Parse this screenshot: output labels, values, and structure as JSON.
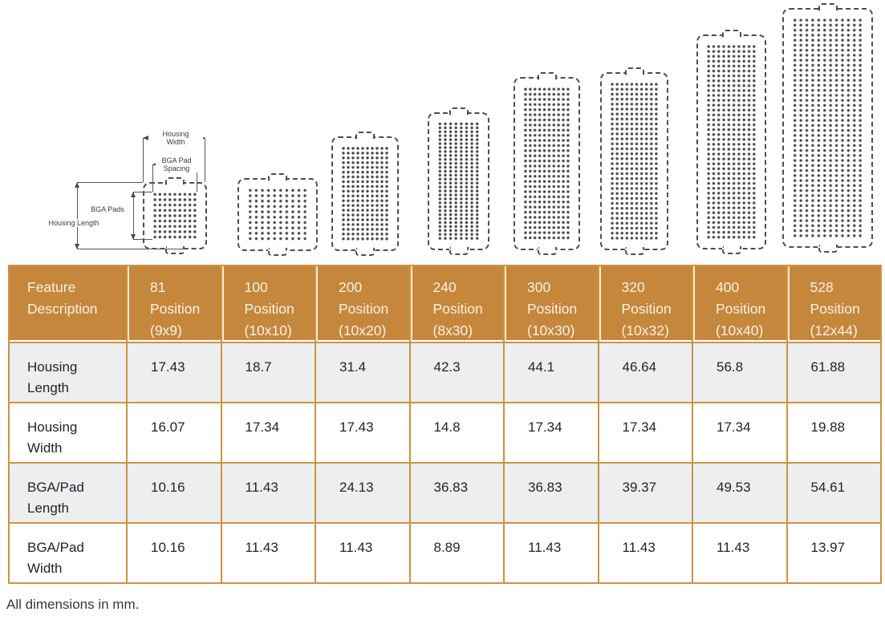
{
  "diagram": {
    "dimension_labels": {
      "housing_width": [
        "Housing",
        "Width"
      ],
      "bga_pad_spacing": [
        "BGA Pad",
        "Spacing"
      ],
      "bga_pads": [
        "BGA Pads"
      ],
      "housing_length": [
        "Housing Length"
      ]
    },
    "packages": [
      {
        "label": "81 Position (9x9)",
        "cols": 9,
        "rows": 9
      },
      {
        "label": "100 Position (10x10)",
        "cols": 10,
        "rows": 10
      },
      {
        "label": "200 Position (10x20)",
        "cols": 10,
        "rows": 20
      },
      {
        "label": "240 Position (8x30)",
        "cols": 8,
        "rows": 30
      },
      {
        "label": "300 Position (10x30)",
        "cols": 10,
        "rows": 30
      },
      {
        "label": "320 Position (10x32)",
        "cols": 10,
        "rows": 32
      },
      {
        "label": "400 Position (10x40)",
        "cols": 10,
        "rows": 40
      },
      {
        "label": "528 Position (12x44)",
        "cols": 12,
        "rows": 44
      }
    ]
  },
  "table": {
    "corner_header": "Feature Description",
    "columns": [
      "81 Position (9x9)",
      "100 Position (10x10)",
      "200 Position (10x20)",
      "240 Position (8x30)",
      "300 Position (10x30)",
      "320 Position (10x32)",
      "400 Position (10x40)",
      "528 Position (12x44)"
    ],
    "rows": [
      {
        "feature": "Housing Length",
        "values": [
          "17.43",
          "18.7",
          "31.4",
          "42.3",
          "44.1",
          "46.64",
          "56.8",
          "61.88"
        ]
      },
      {
        "feature": "Housing Width",
        "values": [
          "16.07",
          "17.34",
          "17.43",
          "14.8",
          "17.34",
          "17.34",
          "17.34",
          "19.88"
        ]
      },
      {
        "feature": "BGA/Pad Length",
        "values": [
          "10.16",
          "11.43",
          "24.13",
          "36.83",
          "36.83",
          "39.37",
          "49.53",
          "54.61"
        ]
      },
      {
        "feature": "BGA/Pad Width",
        "values": [
          "10.16",
          "11.43",
          "11.43",
          "8.89",
          "11.43",
          "11.43",
          "11.43",
          "13.97"
        ]
      }
    ]
  },
  "footer": {
    "note": "All dimensions in mm."
  },
  "colors": {
    "header_bg": "#C5873B",
    "header_text": "#F7F2E4",
    "table_border": "#CE9240",
    "header_separator": "#F3ECDA",
    "row_shaded_bg": "#ECEEF0",
    "body_text": "#242428",
    "outline": "#4D4D50"
  }
}
